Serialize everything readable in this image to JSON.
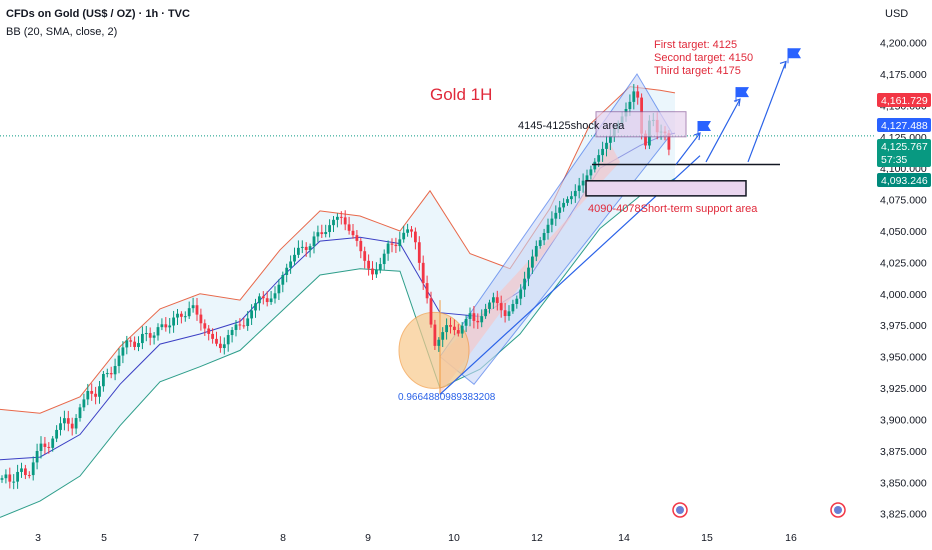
{
  "header": {
    "symbol_line": "CFDs on Gold (US$ / OZ) · 1h · TVC",
    "indicator_line": "BB (20, SMA, close, 2)",
    "currency": "USD"
  },
  "colors": {
    "up": "#089981",
    "down": "#f23645",
    "bb_basis": "#3b3fc4",
    "bb_upper": "#e8684a",
    "bb_lower": "#2e9e8a",
    "bb_fill": "#e3f2fb",
    "channel": "#2a62e8",
    "annotation_red": "#e0293a",
    "badge_red": "#f23645",
    "badge_blue": "#2962ff",
    "badge_green": "#089981",
    "badge_teal": "#00897b"
  },
  "chart_data": {
    "type": "candlestick",
    "title": "Gold 1H",
    "x_tick_labels": [
      "3",
      "5",
      "7",
      "8",
      "9",
      "10",
      "12",
      "14",
      "15",
      "16"
    ],
    "y_ticks": [
      3825,
      3850,
      3875,
      3900,
      3925,
      3950,
      3975,
      4000,
      4025,
      4050,
      4075,
      4100,
      4125,
      4150,
      4175,
      4200
    ],
    "y_tick_labels": [
      "3,825.000",
      "3,850.000",
      "3,875.000",
      "3,900.000",
      "3,925.000",
      "3,950.000",
      "3,975.000",
      "4,000.000",
      "4,025.000",
      "4,050.000",
      "4,075.000",
      "4,100.000",
      "4,125.000",
      "4,150.000",
      "4,175.000",
      "4,200.000"
    ],
    "ylim": [
      3812,
      4218
    ],
    "grid": false,
    "price_path": [
      [
        0,
        3852
      ],
      [
        6,
        3858
      ],
      [
        12,
        3850
      ],
      [
        20,
        3866
      ],
      [
        28,
        3854
      ],
      [
        34,
        3868
      ],
      [
        40,
        3880
      ],
      [
        48,
        3873
      ],
      [
        56,
        3888
      ],
      [
        64,
        3900
      ],
      [
        72,
        3893
      ],
      [
        80,
        3912
      ],
      [
        88,
        3926
      ],
      [
        96,
        3920
      ],
      [
        104,
        3938
      ],
      [
        112,
        3934
      ],
      [
        120,
        3950
      ],
      [
        128,
        3962
      ],
      [
        136,
        3955
      ],
      [
        144,
        3972
      ],
      [
        152,
        3966
      ],
      [
        160,
        3980
      ],
      [
        168,
        3974
      ],
      [
        176,
        3985
      ],
      [
        184,
        3978
      ],
      [
        192,
        3990
      ],
      [
        200,
        3975
      ],
      [
        208,
        3968
      ],
      [
        216,
        3962
      ],
      [
        222,
        3958
      ],
      [
        228,
        3970
      ],
      [
        236,
        3978
      ],
      [
        244,
        3975
      ],
      [
        252,
        3986
      ],
      [
        260,
        3996
      ],
      [
        268,
        3990
      ],
      [
        276,
        4000
      ],
      [
        284,
        4018
      ],
      [
        292,
        4030
      ],
      [
        300,
        4042
      ],
      [
        308,
        4036
      ],
      [
        316,
        4050
      ],
      [
        324,
        4045
      ],
      [
        332,
        4055
      ],
      [
        340,
        4060
      ],
      [
        348,
        4050
      ],
      [
        356,
        4045
      ],
      [
        364,
        4030
      ],
      [
        372,
        4018
      ],
      [
        380,
        4025
      ],
      [
        388,
        4040
      ],
      [
        396,
        4036
      ],
      [
        404,
        4046
      ],
      [
        410,
        4050
      ],
      [
        416,
        4038
      ],
      [
        422,
        4012
      ],
      [
        428,
        3995
      ],
      [
        434,
        3960
      ],
      [
        440,
        3968
      ],
      [
        446,
        3978
      ],
      [
        452,
        3975
      ],
      [
        458,
        3968
      ],
      [
        464,
        3976
      ],
      [
        470,
        3982
      ],
      [
        476,
        3972
      ],
      [
        482,
        3980
      ],
      [
        488,
        3990
      ],
      [
        494,
        3998
      ],
      [
        500,
        3990
      ],
      [
        506,
        3984
      ],
      [
        512,
        3994
      ],
      [
        518,
        4000
      ],
      [
        524,
        4012
      ],
      [
        530,
        4024
      ],
      [
        536,
        4036
      ],
      [
        542,
        4042
      ],
      [
        548,
        4052
      ],
      [
        554,
        4060
      ],
      [
        560,
        4068
      ],
      [
        566,
        4075
      ],
      [
        572,
        4080
      ],
      [
        578,
        4088
      ],
      [
        584,
        4094
      ],
      [
        590,
        4100
      ],
      [
        596,
        4108
      ],
      [
        602,
        4114
      ],
      [
        608,
        4120
      ],
      [
        614,
        4128
      ],
      [
        620,
        4135
      ],
      [
        626,
        4145
      ],
      [
        632,
        4155
      ],
      [
        636,
        4168
      ],
      [
        640,
        4142
      ],
      [
        644,
        4110
      ],
      [
        648,
        4138
      ],
      [
        652,
        4146
      ],
      [
        656,
        4132
      ],
      [
        660,
        4130
      ],
      [
        664,
        4135
      ],
      [
        668,
        4112
      ],
      [
        672,
        4126
      ]
    ],
    "bollinger": {
      "upper_path": [
        [
          0,
          3908
        ],
        [
          40,
          3905
        ],
        [
          80,
          3918
        ],
        [
          120,
          3958
        ],
        [
          160,
          3988
        ],
        [
          200,
          4000
        ],
        [
          240,
          3995
        ],
        [
          280,
          4035
        ],
        [
          320,
          4066
        ],
        [
          360,
          4062
        ],
        [
          400,
          4050
        ],
        [
          430,
          4082
        ],
        [
          470,
          4032
        ],
        [
          510,
          4020
        ],
        [
          550,
          4068
        ],
        [
          590,
          4135
        ],
        [
          630,
          4165
        ],
        [
          660,
          4162
        ],
        [
          675,
          4160
        ]
      ],
      "basis_path": [
        [
          0,
          3868
        ],
        [
          40,
          3870
        ],
        [
          80,
          3888
        ],
        [
          120,
          3928
        ],
        [
          160,
          3960
        ],
        [
          200,
          3968
        ],
        [
          240,
          3978
        ],
        [
          280,
          4012
        ],
        [
          320,
          4042
        ],
        [
          360,
          4045
        ],
        [
          400,
          4040
        ],
        [
          440,
          3985
        ],
        [
          480,
          3982
        ],
        [
          520,
          4002
        ],
        [
          560,
          4050
        ],
        [
          600,
          4100
        ],
        [
          640,
          4118
        ],
        [
          660,
          4125
        ],
        [
          675,
          4128
        ]
      ],
      "lower_path": [
        [
          0,
          3822
        ],
        [
          40,
          3835
        ],
        [
          80,
          3855
        ],
        [
          120,
          3895
        ],
        [
          160,
          3930
        ],
        [
          200,
          3942
        ],
        [
          240,
          3955
        ],
        [
          280,
          3985
        ],
        [
          320,
          4015
        ],
        [
          360,
          4020
        ],
        [
          400,
          4018
        ],
        [
          440,
          3925
        ],
        [
          480,
          3940
        ],
        [
          520,
          3968
        ],
        [
          560,
          4010
        ],
        [
          600,
          4052
        ],
        [
          640,
          4078
        ],
        [
          660,
          4085
        ],
        [
          675,
          4092
        ]
      ]
    },
    "price_badges": [
      {
        "label": "4,161.729",
        "value": 4161.7,
        "color": "red"
      },
      {
        "label": "4,127.488",
        "value": 4127.5,
        "color": "blue"
      },
      {
        "label": "4,125.767",
        "value": 4125.8,
        "color": "green",
        "sublabel": "57:35"
      },
      {
        "label": "4,093.246",
        "value": 4093.2,
        "color": "teal"
      }
    ],
    "annotations": {
      "chart_title": "Gold 1H",
      "first_target": "First target: 4125",
      "second_target": "Second target: 4150",
      "third_target": "Third target: 4175",
      "shock_area": "4145-4125shock area",
      "support_area": "4090-4078Short-term support area",
      "fib_value": "0.9664880989383208"
    },
    "levels": {
      "shock_top": 4145,
      "shock_bottom": 4125,
      "support_top": 4090,
      "support_bottom": 4078,
      "hline_a": 4103,
      "hline_b": 4100
    }
  }
}
